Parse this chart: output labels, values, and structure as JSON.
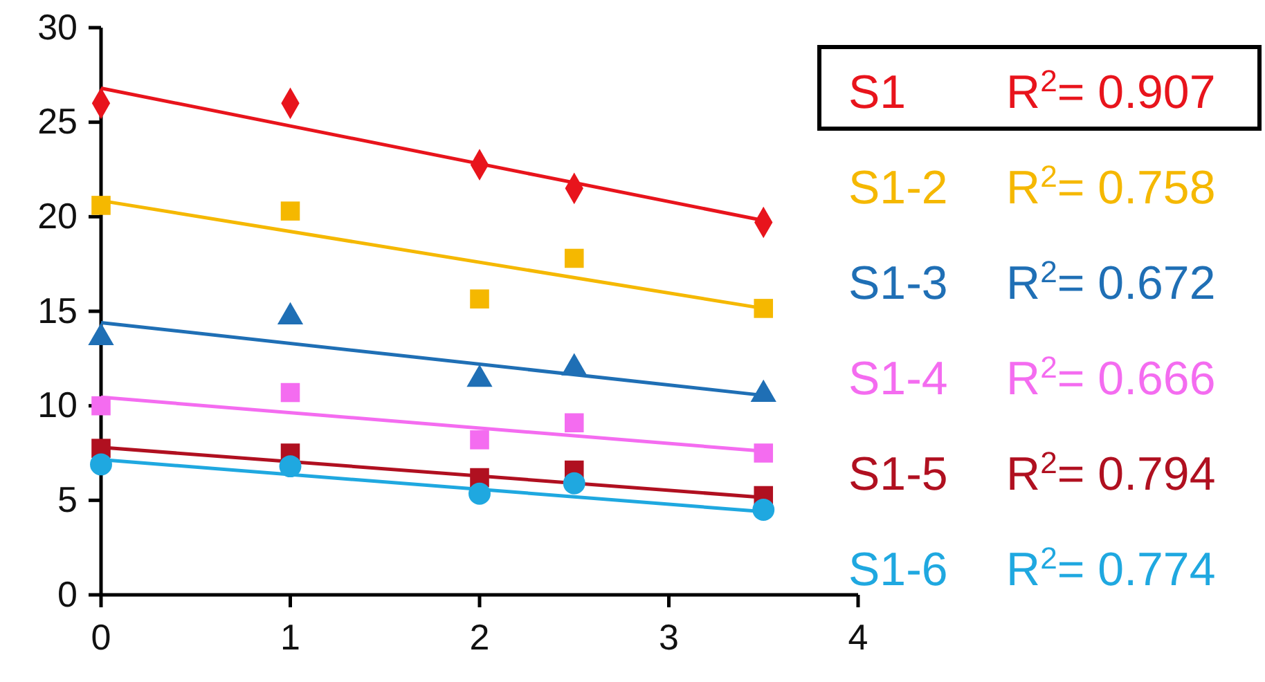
{
  "chart_data": {
    "type": "scatter",
    "xlim": [
      0,
      4
    ],
    "xticks": [
      0,
      1,
      2,
      3,
      4
    ],
    "ylim": [
      0,
      30
    ],
    "yticks": [
      0,
      5,
      10,
      15,
      20,
      25,
      30
    ],
    "grid": false,
    "legend": "right",
    "annotations": [
      "R$^{2}$= 0.907",
      "R$^{2}$= 0.758",
      "R$^{2}$= 0.672",
      "R$^{2}$= 0.666",
      "R$^{2}$= 0.794",
      "R$^{2}$= 0.774"
    ],
    "series": [
      {
        "name": "S1",
        "color": "#e8141c",
        "marker": "diamond",
        "x": [
          0,
          1,
          2,
          2.5,
          3.5
        ],
        "values": [
          26.0,
          26.0,
          22.75,
          21.5,
          19.7
        ]
      },
      {
        "name": "S1-2",
        "color": "#f5b800",
        "marker": "square",
        "x": [
          0,
          1,
          2,
          2.5,
          3.5
        ],
        "values": [
          20.6,
          20.3,
          15.65,
          17.8,
          15.15
        ]
      },
      {
        "name": "S1-3",
        "color": "#1f6fb5",
        "marker": "triangle",
        "x": [
          0,
          1,
          2,
          2.5,
          3.5
        ],
        "values": [
          13.6,
          14.7,
          11.4,
          12.0,
          10.6
        ]
      },
      {
        "name": "S1-4",
        "color": "#f46cf0",
        "marker": "square",
        "x": [
          0,
          1,
          2,
          2.5,
          3.5
        ],
        "values": [
          10.0,
          10.7,
          8.2,
          9.1,
          7.5
        ]
      },
      {
        "name": "S1-5",
        "color": "#b01020",
        "marker": "square",
        "x": [
          0,
          1,
          2,
          2.5,
          3.5
        ],
        "values": [
          7.75,
          7.5,
          6.2,
          6.6,
          5.25
        ]
      },
      {
        "name": "S1-6",
        "color": "#1fa8e0",
        "marker": "circle",
        "x": [
          0,
          1,
          2,
          2.5,
          3.5
        ],
        "values": [
          6.9,
          6.8,
          5.35,
          5.9,
          4.5
        ]
      },
      {
        "type": "line",
        "color": "#e8141c",
        "marker": "none",
        "x": [
          0,
          3.5
        ],
        "values": [
          26.8,
          19.8
        ]
      },
      {
        "type": "line",
        "color": "#f5b800",
        "marker": "none",
        "x": [
          0,
          3.5
        ],
        "values": [
          20.85,
          15.15
        ]
      },
      {
        "type": "line",
        "color": "#1f6fb5",
        "marker": "none",
        "x": [
          0,
          3.5
        ],
        "values": [
          14.4,
          10.55
        ]
      },
      {
        "type": "line",
        "color": "#f46cf0",
        "marker": "none",
        "x": [
          0,
          3.5
        ],
        "values": [
          10.45,
          7.6
        ]
      },
      {
        "type": "line",
        "color": "#b01020",
        "marker": "none",
        "x": [
          0,
          3.5
        ],
        "values": [
          7.8,
          5.15
        ]
      },
      {
        "type": "line",
        "color": "#1fa8e0",
        "marker": "none",
        "x": [
          0,
          3.5
        ],
        "values": [
          7.15,
          4.4
        ]
      }
    ]
  }
}
